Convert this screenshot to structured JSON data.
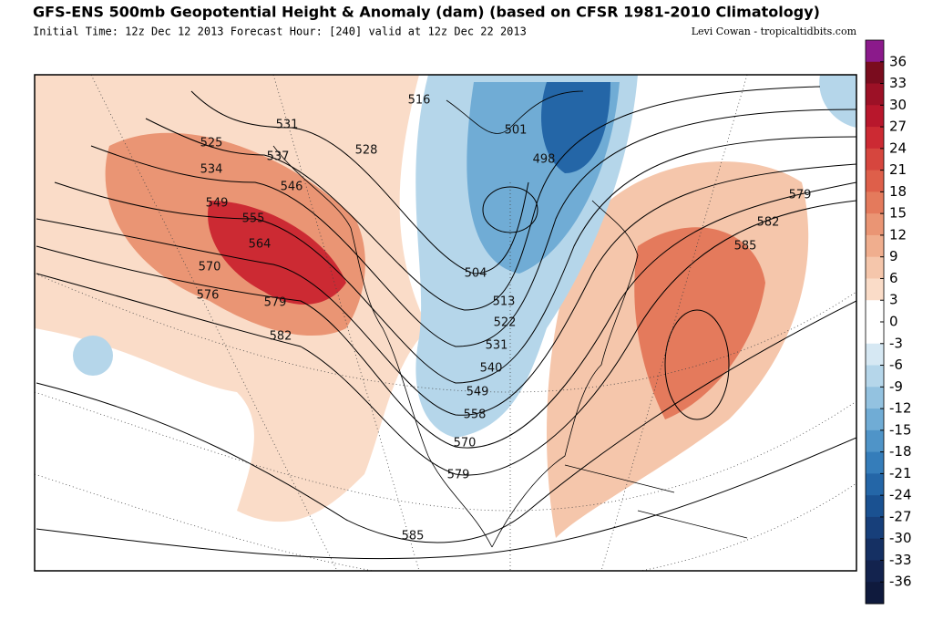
{
  "header": {
    "title": "GFS-ENS 500mb Geopotential Height & Anomaly (dam) (based on CFSR 1981-2010 Climatology)",
    "subtitle": "Initial Time: 12z Dec 12 2013 Forecast Hour: [240] valid at 12z Dec 22 2013",
    "credit": "Levi Cowan - tropicaltidbits.com"
  },
  "colorbar": {
    "ticks": [
      36,
      33,
      30,
      27,
      24,
      21,
      18,
      15,
      12,
      9,
      6,
      3,
      0,
      -3,
      -6,
      -9,
      -12,
      -15,
      -18,
      -21,
      -24,
      -27,
      -30,
      -33,
      -36
    ],
    "colors": [
      "#8b1a8b",
      "#7a0c1e",
      "#9c1126",
      "#b8172c",
      "#cc2a33",
      "#d6463e",
      "#de5f4a",
      "#e47a5c",
      "#ea9574",
      "#f0ae8e",
      "#f5c6ab",
      "#fadcc8",
      "#ffffff",
      "#ffffff",
      "#d6e8f3",
      "#b5d6ea",
      "#93c2e0",
      "#70acd5",
      "#4f94c8",
      "#357dba",
      "#2466a7",
      "#1a5191",
      "#173f7a",
      "#153063",
      "#13234e",
      "#0f1a3d"
    ]
  },
  "contour_labels": [
    516,
    531,
    525,
    528,
    537,
    534,
    546,
    549,
    555,
    564,
    570,
    576,
    579,
    582,
    501,
    498,
    504,
    513,
    522,
    531,
    540,
    549,
    558,
    570,
    579,
    585,
    579,
    582,
    585
  ]
}
